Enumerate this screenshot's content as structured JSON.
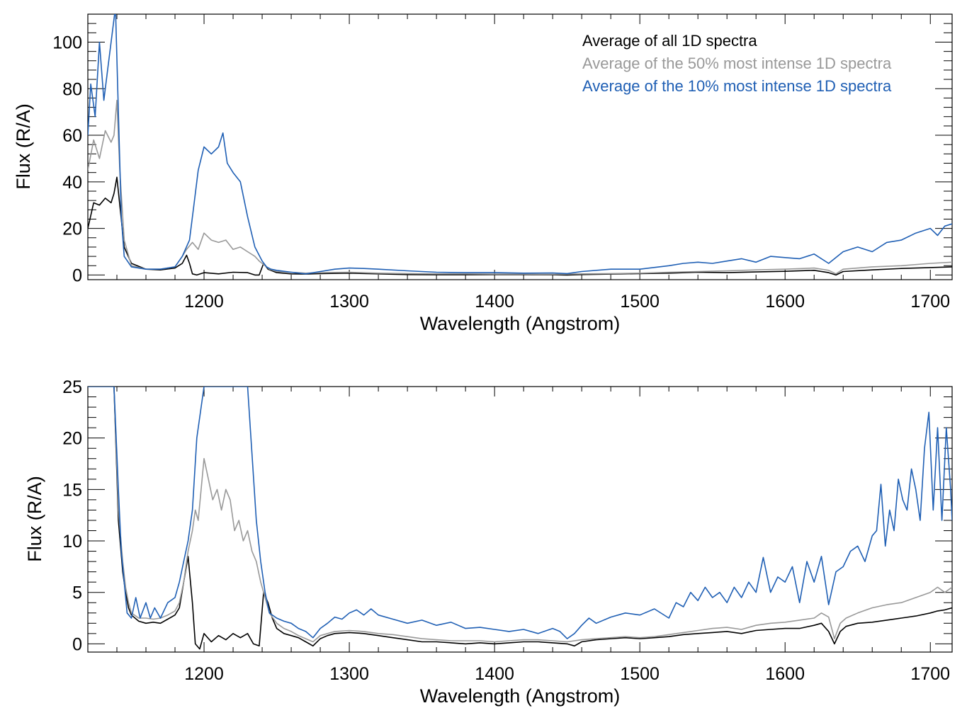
{
  "chart_data": [
    {
      "type": "line",
      "xlabel": "Wavelength (Angstrom)",
      "ylabel": "Flux (R/A)",
      "xlim": [
        1120,
        1715
      ],
      "ylim": [
        -2,
        112
      ],
      "xticks": [
        1200,
        1300,
        1400,
        1500,
        1600,
        1700
      ],
      "yticks": [
        0,
        20,
        40,
        60,
        80,
        100
      ],
      "grid": false,
      "legend": "top-right",
      "series": [
        {
          "name": "Average of all 1D spectra",
          "color": "#000000",
          "x": [
            1120,
            1124,
            1128,
            1132,
            1136,
            1138,
            1140,
            1142,
            1145,
            1150,
            1160,
            1170,
            1180,
            1185,
            1188,
            1190,
            1192,
            1195,
            1200,
            1210,
            1220,
            1230,
            1235,
            1238,
            1241,
            1244,
            1250,
            1260,
            1270,
            1280,
            1300,
            1320,
            1340,
            1360,
            1380,
            1400,
            1420,
            1440,
            1450,
            1460,
            1480,
            1500,
            1520,
            1540,
            1560,
            1580,
            1600,
            1620,
            1630,
            1635,
            1640,
            1660,
            1680,
            1700,
            1715
          ],
          "values": [
            20,
            31,
            30,
            33,
            31,
            35,
            42,
            30,
            12,
            5,
            2.5,
            2.2,
            3.0,
            5,
            8.5,
            5,
            0.5,
            0,
            1.0,
            0.5,
            1.2,
            1.0,
            0,
            0,
            5,
            2.5,
            1.0,
            0.5,
            0.4,
            0.6,
            0.8,
            0.5,
            0.2,
            0.1,
            0.1,
            0.2,
            0.2,
            0.1,
            0,
            0.2,
            0.4,
            0.6,
            0.8,
            1.2,
            1.0,
            1.3,
            1.6,
            2.0,
            1.0,
            0,
            1.5,
            2.2,
            2.8,
            3.2,
            3.5
          ]
        },
        {
          "name": "Average of the 50% most intense 1D spectra",
          "color": "#999999",
          "x": [
            1120,
            1124,
            1128,
            1132,
            1136,
            1138,
            1140,
            1142,
            1145,
            1150,
            1160,
            1170,
            1180,
            1185,
            1188,
            1192,
            1196,
            1200,
            1205,
            1210,
            1215,
            1220,
            1225,
            1230,
            1235,
            1238,
            1242,
            1245,
            1250,
            1260,
            1270,
            1280,
            1300,
            1320,
            1340,
            1360,
            1380,
            1400,
            1420,
            1440,
            1460,
            1480,
            1500,
            1520,
            1540,
            1560,
            1580,
            1600,
            1620,
            1630,
            1635,
            1640,
            1660,
            1680,
            1700,
            1715
          ],
          "values": [
            45,
            58,
            50,
            62,
            57,
            60,
            75,
            45,
            15,
            4.0,
            2.5,
            2.5,
            3.5,
            8,
            11,
            14,
            11,
            18,
            15,
            14,
            15,
            11,
            12,
            10,
            8,
            6,
            4,
            2.5,
            1.5,
            1.2,
            0.8,
            1.0,
            1.2,
            0.8,
            0.6,
            0.5,
            0.5,
            0.4,
            0.4,
            0.3,
            0.5,
            0.6,
            0.8,
            1.2,
            1.5,
            1.8,
            2.2,
            2.5,
            3.0,
            2.0,
            0.5,
            2.5,
            3.5,
            4.0,
            5.0,
            5.5
          ]
        },
        {
          "name": "Average of the 10% most intense 1D spectra",
          "color": "#1f5fb4",
          "x": [
            1120,
            1122,
            1125,
            1128,
            1131,
            1134,
            1137,
            1139,
            1141,
            1143,
            1145,
            1150,
            1155,
            1160,
            1170,
            1180,
            1185,
            1190,
            1193,
            1196,
            1200,
            1205,
            1210,
            1213,
            1216,
            1220,
            1225,
            1230,
            1235,
            1240,
            1243,
            1246,
            1250,
            1260,
            1270,
            1280,
            1290,
            1300,
            1310,
            1320,
            1340,
            1360,
            1380,
            1400,
            1420,
            1440,
            1450,
            1460,
            1480,
            1500,
            1520,
            1530,
            1540,
            1550,
            1560,
            1570,
            1580,
            1590,
            1600,
            1610,
            1620,
            1630,
            1640,
            1650,
            1660,
            1670,
            1680,
            1690,
            1700,
            1705,
            1710,
            1715
          ],
          "values": [
            60,
            82,
            68,
            100,
            75,
            90,
            105,
            115,
            70,
            25,
            8,
            3.5,
            3.0,
            2.5,
            2.5,
            3.5,
            8,
            15,
            30,
            45,
            55,
            52,
            55,
            61,
            48,
            44,
            40,
            25,
            12,
            6,
            3.5,
            2.5,
            2.0,
            1.2,
            0.5,
            1.5,
            2.5,
            3.0,
            2.8,
            2.5,
            1.8,
            1.2,
            1.0,
            1.0,
            0.8,
            0.9,
            0.6,
            1.5,
            2.5,
            2.5,
            4.0,
            5.0,
            5.5,
            5.0,
            6.0,
            7.0,
            5.5,
            8.0,
            7.5,
            7.0,
            9.0,
            5.0,
            10,
            12,
            10,
            14,
            15,
            18,
            20,
            17,
            21,
            22
          ]
        }
      ]
    },
    {
      "type": "line",
      "xlabel": "Wavelength (Angstrom)",
      "ylabel": "Flux (R/A)",
      "xlim": [
        1120,
        1715
      ],
      "ylim": [
        -0.8,
        25
      ],
      "xticks": [
        1200,
        1300,
        1400,
        1500,
        1600,
        1700
      ],
      "yticks": [
        0,
        5,
        10,
        15,
        20,
        25
      ],
      "grid": false,
      "series": [
        {
          "name": "Average of all 1D spectra",
          "color": "#000000",
          "x": [
            1138,
            1141,
            1144,
            1146,
            1148,
            1150,
            1155,
            1160,
            1165,
            1170,
            1175,
            1180,
            1183,
            1186,
            1189,
            1192,
            1194,
            1197,
            1200,
            1205,
            1210,
            1215,
            1220,
            1225,
            1230,
            1234,
            1238,
            1241,
            1244,
            1247,
            1250,
            1255,
            1260,
            1265,
            1270,
            1275,
            1280,
            1285,
            1290,
            1300,
            1310,
            1320,
            1330,
            1340,
            1350,
            1360,
            1370,
            1380,
            1390,
            1400,
            1410,
            1420,
            1430,
            1440,
            1450,
            1455,
            1460,
            1470,
            1480,
            1490,
            1500,
            1510,
            1520,
            1530,
            1540,
            1550,
            1560,
            1570,
            1580,
            1590,
            1600,
            1610,
            1620,
            1625,
            1630,
            1634,
            1638,
            1642,
            1650,
            1660,
            1670,
            1680,
            1690,
            1700,
            1705,
            1710,
            1715
          ],
          "values": [
            25,
            12,
            7,
            5,
            3.5,
            2.8,
            2.2,
            2.0,
            2.1,
            2.0,
            2.4,
            2.8,
            3.5,
            6,
            8.5,
            4,
            0,
            -0.5,
            1.0,
            0.2,
            0.8,
            0.4,
            1.0,
            0.6,
            1.0,
            0,
            -0.2,
            5,
            4,
            2.5,
            1.5,
            1.0,
            0.8,
            0.6,
            0.2,
            -0.2,
            0.5,
            0.8,
            1.0,
            1.1,
            1.0,
            0.8,
            0.6,
            0.4,
            0.2,
            0.2,
            0.1,
            0.0,
            0.1,
            0.0,
            0.1,
            0.2,
            0.2,
            0.1,
            0.0,
            -0.2,
            0.2,
            0.4,
            0.5,
            0.6,
            0.5,
            0.6,
            0.7,
            0.9,
            1.0,
            1.1,
            1.2,
            1.0,
            1.3,
            1.4,
            1.5,
            1.5,
            1.8,
            2.0,
            1.2,
            0,
            1.2,
            1.7,
            2.0,
            2.1,
            2.3,
            2.5,
            2.7,
            3.0,
            3.2,
            3.3,
            3.5
          ]
        },
        {
          "name": "Average of the 50% most intense 1D spectra",
          "color": "#999999",
          "x": [
            1138,
            1141,
            1144,
            1146,
            1148,
            1150,
            1155,
            1160,
            1165,
            1170,
            1175,
            1180,
            1183,
            1186,
            1189,
            1192,
            1194,
            1196,
            1198,
            1200,
            1203,
            1206,
            1209,
            1212,
            1215,
            1218,
            1221,
            1224,
            1227,
            1230,
            1233,
            1236,
            1239,
            1242,
            1245,
            1250,
            1255,
            1260,
            1265,
            1270,
            1275,
            1280,
            1290,
            1300,
            1310,
            1320,
            1330,
            1340,
            1350,
            1360,
            1370,
            1380,
            1390,
            1400,
            1410,
            1420,
            1430,
            1440,
            1450,
            1460,
            1470,
            1480,
            1490,
            1500,
            1510,
            1520,
            1530,
            1540,
            1550,
            1560,
            1570,
            1580,
            1590,
            1600,
            1610,
            1620,
            1625,
            1630,
            1634,
            1638,
            1642,
            1650,
            1660,
            1670,
            1680,
            1690,
            1700,
            1705,
            1710,
            1715
          ],
          "values": [
            25,
            13,
            8,
            5.5,
            4,
            3.0,
            2.5,
            2.5,
            2.4,
            2.5,
            2.8,
            3.2,
            4,
            6,
            9,
            11,
            13,
            12,
            15,
            18,
            16,
            14,
            15,
            13,
            15,
            14,
            11,
            12,
            10,
            11,
            9,
            8,
            6,
            4.5,
            3,
            2.0,
            1.5,
            1.2,
            0.8,
            0.5,
            0.2,
            0.8,
            1.2,
            1.3,
            1.2,
            1.0,
            0.9,
            0.7,
            0.5,
            0.4,
            0.3,
            0.3,
            0.3,
            0.2,
            0.3,
            0.4,
            0.4,
            0.3,
            0.2,
            0.4,
            0.5,
            0.6,
            0.7,
            0.6,
            0.7,
            0.9,
            1.1,
            1.3,
            1.5,
            1.6,
            1.4,
            1.8,
            2.0,
            2.1,
            2.3,
            2.5,
            3.0,
            2.6,
            0.5,
            2.0,
            2.5,
            3.0,
            3.5,
            3.8,
            4.0,
            4.5,
            5.0,
            5.5,
            5.0,
            5.5
          ]
        },
        {
          "name": "Average of the 10% most intense 1D spectra",
          "color": "#1f5fb4",
          "x": [
            1120,
            1138,
            1141,
            1143,
            1145,
            1147,
            1150,
            1153,
            1156,
            1160,
            1163,
            1166,
            1170,
            1175,
            1180,
            1183,
            1186,
            1189,
            1192,
            1195,
            1200,
            1230,
            1236,
            1239,
            1242,
            1245,
            1250,
            1255,
            1260,
            1265,
            1270,
            1275,
            1280,
            1285,
            1290,
            1295,
            1300,
            1305,
            1310,
            1315,
            1320,
            1330,
            1340,
            1350,
            1360,
            1370,
            1380,
            1390,
            1400,
            1410,
            1420,
            1430,
            1440,
            1445,
            1450,
            1455,
            1460,
            1465,
            1470,
            1480,
            1490,
            1500,
            1510,
            1520,
            1525,
            1530,
            1535,
            1540,
            1545,
            1550,
            1555,
            1560,
            1565,
            1570,
            1575,
            1580,
            1585,
            1590,
            1595,
            1600,
            1605,
            1610,
            1615,
            1620,
            1625,
            1630,
            1635,
            1640,
            1645,
            1650,
            1655,
            1660,
            1663,
            1666,
            1669,
            1672,
            1675,
            1678,
            1681,
            1684,
            1687,
            1690,
            1693,
            1696,
            1699,
            1702,
            1705,
            1708,
            1711,
            1714,
            1715
          ],
          "values": [
            25,
            25,
            15,
            9,
            6,
            3,
            2.5,
            4.5,
            2.5,
            4,
            2.5,
            3.5,
            2.5,
            4,
            4.5,
            6,
            8,
            10,
            13,
            20,
            25,
            25,
            12,
            8,
            5,
            3,
            2.5,
            2.2,
            2.0,
            1.5,
            1.2,
            0.6,
            1.5,
            2.0,
            2.6,
            2.4,
            3.0,
            3.3,
            2.8,
            3.4,
            2.8,
            2.4,
            2.0,
            2.3,
            1.8,
            2.1,
            1.5,
            1.6,
            1.4,
            1.2,
            1.4,
            1.0,
            1.5,
            1.2,
            0.5,
            1.0,
            1.8,
            2.5,
            2.0,
            2.6,
            3.0,
            2.8,
            3.4,
            2.5,
            4.0,
            3.6,
            5.0,
            4.2,
            5.5,
            4.5,
            5.0,
            4.0,
            5.5,
            4.5,
            6.0,
            5.0,
            8.4,
            5.0,
            6.5,
            6.0,
            7.5,
            4.0,
            8.0,
            6.0,
            8.5,
            3.8,
            7.0,
            7.5,
            9.0,
            9.5,
            8.0,
            10.5,
            11.0,
            15.5,
            9.5,
            13.0,
            11.0,
            16.0,
            14.0,
            13.0,
            17.0,
            15.0,
            12.0,
            19.0,
            22.5,
            13.0,
            21.0,
            12.0,
            21.0,
            15.0,
            12.0
          ]
        }
      ]
    }
  ]
}
